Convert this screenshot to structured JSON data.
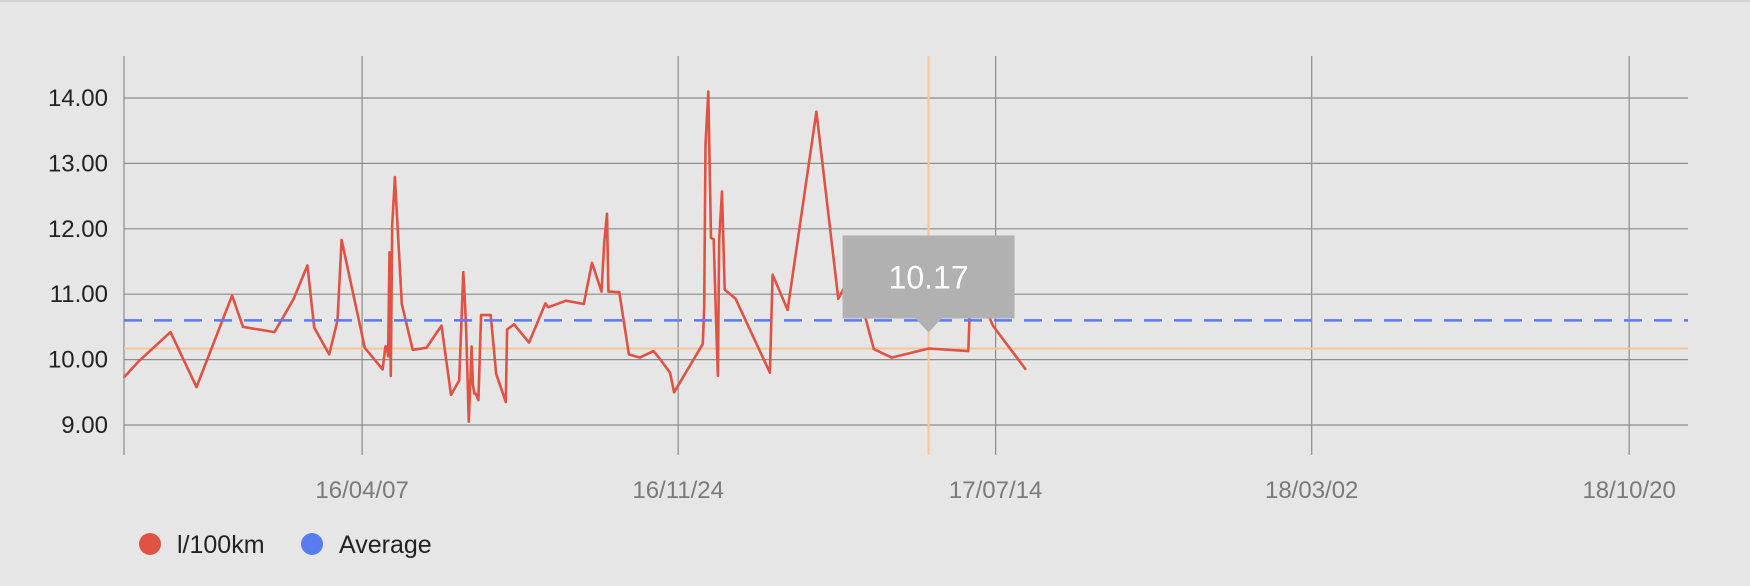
{
  "chart_data": {
    "type": "line",
    "ylim": [
      8.5,
      14.7
    ],
    "yticks": [
      9.0,
      10.0,
      11.0,
      12.0,
      13.0,
      14.0
    ],
    "ytick_labels": [
      "9.00",
      "10.00",
      "11.00",
      "12.00",
      "13.00",
      "14.00"
    ],
    "xlim": [
      "2015-10-16",
      "2018-12-02"
    ],
    "xticks": [
      "2016-04-07",
      "2016-11-24",
      "2017-07-14",
      "2018-03-02",
      "2018-10-20"
    ],
    "xtick_labels": [
      "16/04/07",
      "16/11/24",
      "17/07/14",
      "18/03/02",
      "18/10/20"
    ],
    "grid": true,
    "legend_position": "bottom-left",
    "series": [
      {
        "name": "l/100km",
        "color": "#e05244",
        "points": [
          [
            "2015-10-16",
            9.73
          ],
          [
            "2015-10-27",
            9.98
          ],
          [
            "2015-11-19",
            10.42
          ],
          [
            "2015-12-08",
            9.58
          ],
          [
            "2016-01-03",
            10.98
          ],
          [
            "2016-01-11",
            10.5
          ],
          [
            "2016-02-03",
            10.42
          ],
          [
            "2016-02-17",
            10.93
          ],
          [
            "2016-02-27",
            11.44
          ],
          [
            "2016-03-03",
            10.49
          ],
          [
            "2016-03-14",
            10.08
          ],
          [
            "2016-03-20",
            10.6
          ],
          [
            "2016-03-23",
            11.83
          ],
          [
            "2016-04-09",
            10.18
          ],
          [
            "2016-04-22",
            9.85
          ],
          [
            "2016-04-24",
            10.2
          ],
          [
            "2016-04-25",
            10.2
          ],
          [
            "2016-04-26",
            10.05
          ],
          [
            "2016-04-27",
            11.64
          ],
          [
            "2016-04-28",
            9.75
          ],
          [
            "2016-04-29",
            12.05
          ],
          [
            "2016-05-01",
            12.79
          ],
          [
            "2016-05-06",
            10.85
          ],
          [
            "2016-05-14",
            10.15
          ],
          [
            "2016-05-24",
            10.18
          ],
          [
            "2016-06-04",
            10.52
          ],
          [
            "2016-06-11",
            9.46
          ],
          [
            "2016-06-17",
            9.68
          ],
          [
            "2016-06-20",
            11.34
          ],
          [
            "2016-06-21",
            10.95
          ],
          [
            "2016-06-22",
            10.48
          ],
          [
            "2016-06-24",
            9.05
          ],
          [
            "2016-06-26",
            10.2
          ],
          [
            "2016-06-27",
            9.62
          ],
          [
            "2016-06-28",
            9.48
          ],
          [
            "2016-06-29",
            9.48
          ],
          [
            "2016-07-01",
            9.38
          ],
          [
            "2016-07-03",
            10.68
          ],
          [
            "2016-07-10",
            10.68
          ],
          [
            "2016-07-14",
            9.78
          ],
          [
            "2016-07-21",
            9.35
          ],
          [
            "2016-07-22",
            10.46
          ],
          [
            "2016-07-27",
            10.54
          ],
          [
            "2016-08-07",
            10.26
          ],
          [
            "2016-08-19",
            10.86
          ],
          [
            "2016-08-21",
            10.8
          ],
          [
            "2016-09-03",
            10.9
          ],
          [
            "2016-09-16",
            10.85
          ],
          [
            "2016-09-22",
            11.48
          ],
          [
            "2016-09-29",
            11.04
          ],
          [
            "2016-10-01",
            11.8
          ],
          [
            "2016-10-03",
            12.23
          ],
          [
            "2016-10-04",
            11.04
          ],
          [
            "2016-10-12",
            11.03
          ],
          [
            "2016-10-19",
            10.08
          ],
          [
            "2016-10-27",
            10.03
          ],
          [
            "2016-11-06",
            10.13
          ],
          [
            "2016-11-11",
            10.0
          ],
          [
            "2016-11-18",
            9.8
          ],
          [
            "2016-11-21",
            9.5
          ],
          [
            "2016-12-12",
            10.24
          ],
          [
            "2016-12-13",
            10.8
          ],
          [
            "2016-12-14",
            13.28
          ],
          [
            "2016-12-16",
            14.1
          ],
          [
            "2016-12-18",
            11.86
          ],
          [
            "2016-12-20",
            11.84
          ],
          [
            "2016-12-22",
            10.38
          ],
          [
            "2016-12-23",
            9.75
          ],
          [
            "2016-12-24",
            11.84
          ],
          [
            "2016-12-26",
            12.57
          ],
          [
            "2016-12-28",
            11.07
          ],
          [
            "2017-01-05",
            10.93
          ],
          [
            "2017-01-30",
            9.8
          ],
          [
            "2017-02-01",
            11.3
          ],
          [
            "2017-02-12",
            10.76
          ],
          [
            "2017-03-05",
            13.79
          ],
          [
            "2017-03-21",
            10.93
          ],
          [
            "2017-03-31",
            11.33
          ],
          [
            "2017-04-04",
            11.1
          ],
          [
            "2017-04-16",
            10.16
          ],
          [
            "2017-04-29",
            10.03
          ],
          [
            "2017-05-26",
            10.17
          ],
          [
            "2017-06-24",
            10.13
          ],
          [
            "2017-06-26",
            11.3
          ],
          [
            "2017-07-12",
            10.52
          ],
          [
            "2017-08-05",
            9.85
          ]
        ]
      },
      {
        "name": "Average",
        "color": "#5b7bf0",
        "constant": 10.6
      }
    ],
    "highlight": {
      "x": "2017-05-26",
      "y": 10.17,
      "label": "10.17",
      "color": "#f5c79a"
    }
  }
}
